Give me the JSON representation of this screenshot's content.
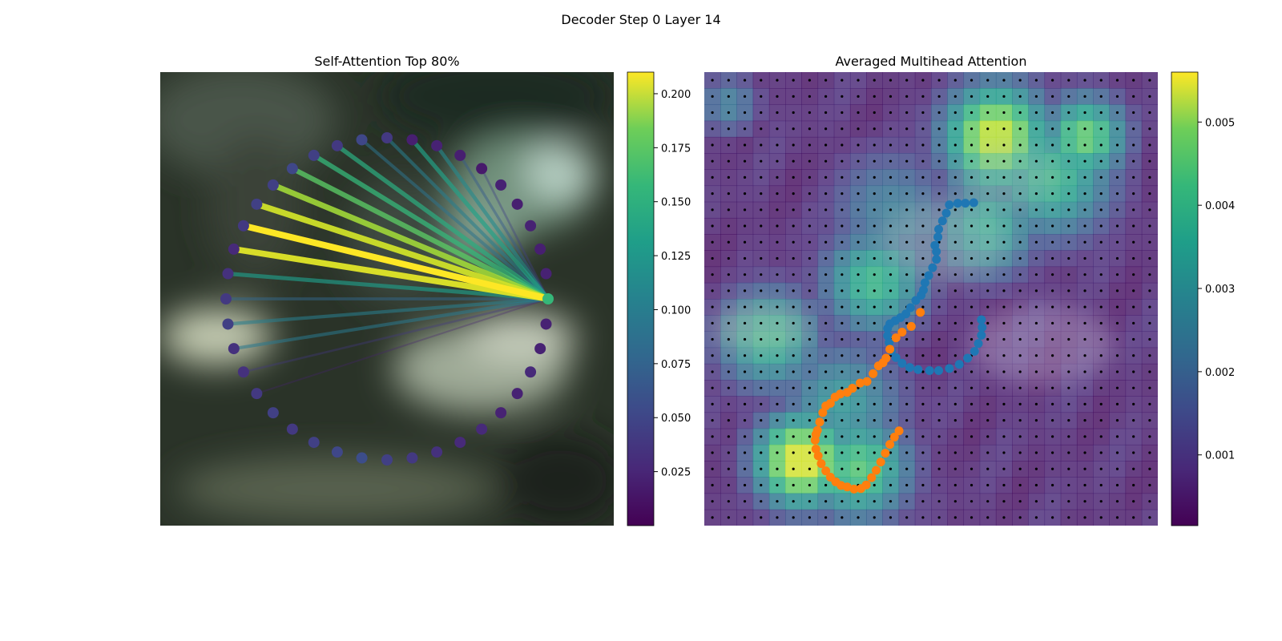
{
  "figure": {
    "suptitle": "Decoder Step 0 Layer 14"
  },
  "chart_data": [
    {
      "type": "network",
      "title": "Self-Attention Top 80%",
      "colormap": "viridis",
      "colorbar": {
        "min": 0.0,
        "max": 0.21,
        "ticks": [
          0.025,
          0.05,
          0.075,
          0.1,
          0.125,
          0.15,
          0.175,
          0.2
        ],
        "tick_labels": [
          "0.025",
          "0.050",
          "0.075",
          "0.100",
          "0.125",
          "0.150",
          "0.175",
          "0.200"
        ]
      },
      "nodes": {
        "count": 40,
        "query_index": 0,
        "attention": [
          0.14,
          0.02,
          0.018,
          0.02,
          0.018,
          0.02,
          0.015,
          0.018,
          0.02,
          0.018,
          0.035,
          0.045,
          0.035,
          0.04,
          0.045,
          0.04,
          0.04,
          0.035,
          0.025,
          0.03,
          0.035,
          0.04,
          0.03,
          0.03,
          0.035,
          0.04,
          0.035,
          0.04,
          0.045,
          0.05,
          0.04,
          0.035,
          0.03,
          0.025,
          0.025,
          0.02,
          0.02,
          0.025,
          0.02,
          0.02
        ]
      },
      "edges": [
        {
          "target": 8,
          "weight": 0.1
        },
        {
          "target": 9,
          "weight": 0.12
        },
        {
          "target": 10,
          "weight": 0.09
        },
        {
          "target": 11,
          "weight": 0.08
        },
        {
          "target": 12,
          "weight": 0.13
        },
        {
          "target": 13,
          "weight": 0.14
        },
        {
          "target": 14,
          "weight": 0.155
        },
        {
          "target": 15,
          "weight": 0.18
        },
        {
          "target": 16,
          "weight": 0.195
        },
        {
          "target": 17,
          "weight": 0.21
        },
        {
          "target": 18,
          "weight": 0.2
        },
        {
          "target": 19,
          "weight": 0.115
        },
        {
          "target": 20,
          "weight": 0.07
        },
        {
          "target": 21,
          "weight": 0.09
        },
        {
          "target": 22,
          "weight": 0.085
        },
        {
          "target": 23,
          "weight": 0.035
        },
        {
          "target": 24,
          "weight": 0.02
        },
        {
          "target": 7,
          "weight": 0.06
        },
        {
          "target": 6,
          "weight": 0.04
        }
      ]
    },
    {
      "type": "heatmap",
      "title": "Averaged Multihead Attention",
      "colormap": "viridis",
      "grid": {
        "rows": 28,
        "cols": 28
      },
      "colorbar": {
        "min": 0.00015,
        "max": 0.0056,
        "ticks": [
          0.001,
          0.002,
          0.003,
          0.004,
          0.005
        ],
        "tick_labels": [
          "0.001",
          "0.002",
          "0.003",
          "0.004",
          "0.005"
        ]
      },
      "hotspots": [
        {
          "row": 3.5,
          "col": 17.5,
          "value": 0.0052,
          "spread": 2.5
        },
        {
          "row": 3.5,
          "col": 23,
          "value": 0.0042,
          "spread": 2
        },
        {
          "row": 6,
          "col": 21,
          "value": 0.0035,
          "spread": 3
        },
        {
          "row": 9,
          "col": 17,
          "value": 0.0032,
          "spread": 2.5
        },
        {
          "row": 12.5,
          "col": 10,
          "value": 0.0036,
          "spread": 2.5
        },
        {
          "row": 16,
          "col": 3.5,
          "value": 0.0034,
          "spread": 2.5
        },
        {
          "row": 23.5,
          "col": 5.5,
          "value": 0.0055,
          "spread": 2.2
        },
        {
          "row": 24,
          "col": 9,
          "value": 0.004,
          "spread": 2.5
        },
        {
          "row": 20,
          "col": 8,
          "value": 0.0028,
          "spread": 3
        },
        {
          "row": 1.5,
          "col": 1,
          "value": 0.0022,
          "spread": 1.5
        },
        {
          "row": 8,
          "col": 11,
          "value": 0.0022,
          "spread": 3
        }
      ],
      "baseline": 0.0008,
      "series": [
        {
          "color": "#1f77b4",
          "points": [
            [
              5.6,
              18.5
            ],
            [
              4.5,
              18.4
            ],
            [
              3.5,
              18.4
            ],
            [
              2.4,
              18.1
            ],
            [
              2.0,
              16.5
            ],
            [
              1.5,
              15.0
            ],
            [
              1.0,
              13.4
            ],
            [
              0.9,
              11.9
            ],
            [
              0.5,
              10.3
            ],
            [
              0.7,
              9.1
            ],
            [
              0.7,
              7.6
            ],
            [
              0.2,
              6.0
            ],
            [
              -0.3,
              4.5
            ],
            [
              -0.8,
              3.1
            ],
            [
              -1.0,
              1.7
            ],
            [
              -1.3,
              0.7
            ],
            [
              -2.0,
              -0.3
            ],
            [
              -2.7,
              -1.7
            ],
            [
              -3.3,
              -2.9
            ],
            [
              -4.0,
              -3.6
            ],
            [
              -4.7,
              -4.2
            ],
            [
              -5.4,
              -4.8
            ],
            [
              -5.7,
              -5.7
            ],
            [
              -5.7,
              -7.1
            ],
            [
              -5.5,
              -8.4
            ],
            [
              -5.2,
              -10.0
            ],
            [
              -4.6,
              -11.3
            ],
            [
              -3.8,
              -12.4
            ],
            [
              -2.8,
              -13.2
            ],
            [
              -1.7,
              -13.6
            ],
            [
              -0.2,
              -13.8
            ],
            [
              1.0,
              -13.8
            ],
            [
              2.4,
              -13.4
            ],
            [
              3.7,
              -12.6
            ],
            [
              4.8,
              -11.4
            ],
            [
              5.7,
              -10.1
            ],
            [
              6.2,
              -8.6
            ],
            [
              6.6,
              -7.0
            ],
            [
              6.7,
              -5.5
            ],
            [
              6.6,
              -4.0
            ]
          ]
        },
        {
          "color": "#ff7f0e",
          "points": [
            [
              -1.4,
              -2.6
            ],
            [
              -2.6,
              -5.3
            ],
            [
              -3.8,
              -6.4
            ],
            [
              -4.6,
              -7.5
            ],
            [
              -5.4,
              -9.7
            ],
            [
              -5.9,
              -11.4
            ],
            [
              -6.3,
              -12.3
            ],
            [
              -6.9,
              -12.9
            ],
            [
              -7.6,
              -14.4
            ],
            [
              -8.4,
              -15.9
            ],
            [
              -9.3,
              -16.2
            ],
            [
              -10.3,
              -17.2
            ],
            [
              -11.0,
              -18.0
            ],
            [
              -11.9,
              -18.3
            ],
            [
              -12.6,
              -18.9
            ],
            [
              -13.2,
              -20.1
            ],
            [
              -13.8,
              -20.6
            ],
            [
              -14.2,
              -21.9
            ],
            [
              -14.6,
              -23.7
            ],
            [
              -14.9,
              -25.3
            ],
            [
              -15.1,
              -26.1
            ],
            [
              -15.2,
              -27.2
            ],
            [
              -15.1,
              -28.9
            ],
            [
              -14.8,
              -30.2
            ],
            [
              -14.4,
              -31.7
            ],
            [
              -13.8,
              -33.1
            ],
            [
              -13.2,
              -34.3
            ],
            [
              -12.5,
              -35.2
            ],
            [
              -11.8,
              -35.9
            ],
            [
              -11.0,
              -36.2
            ],
            [
              -10.1,
              -36.6
            ],
            [
              -9.2,
              -36.5
            ],
            [
              -8.5,
              -35.8
            ],
            [
              -7.8,
              -34.4
            ],
            [
              -7.2,
              -33.0
            ],
            [
              -6.6,
              -31.4
            ],
            [
              -6.0,
              -29.7
            ],
            [
              -5.4,
              -28.0
            ],
            [
              -4.8,
              -26.6
            ],
            [
              -4.2,
              -25.4
            ]
          ]
        }
      ]
    }
  ]
}
